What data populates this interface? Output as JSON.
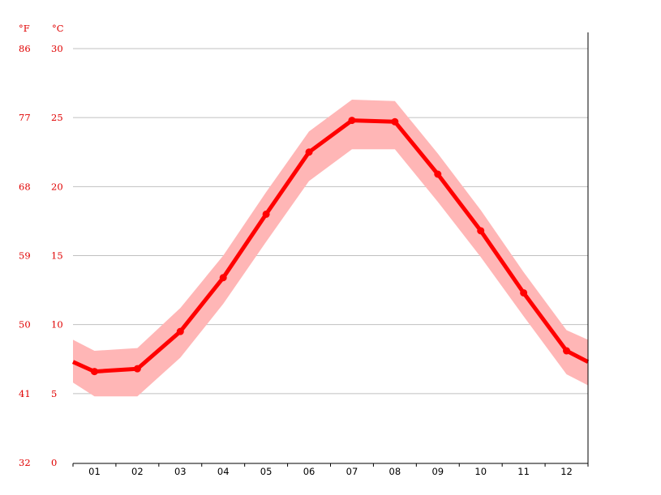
{
  "chart_data": {
    "type": "line",
    "units": {
      "fahrenheit": "°F",
      "celsius": "°C"
    },
    "categories": [
      "01",
      "02",
      "03",
      "04",
      "05",
      "06",
      "07",
      "08",
      "09",
      "10",
      "11",
      "12"
    ],
    "x": [
      1,
      2,
      3,
      4,
      5,
      6,
      7,
      8,
      9,
      10,
      11,
      12
    ],
    "series": [
      {
        "values": [
          6.6,
          6.8,
          9.5,
          13.4,
          18.0,
          22.5,
          24.8,
          24.7,
          20.9,
          16.8,
          12.3,
          8.1
        ],
        "band_high": [
          8.1,
          8.3,
          11.2,
          15.0,
          19.6,
          24.0,
          26.3,
          26.2,
          22.4,
          18.3,
          13.8,
          9.6
        ],
        "band_low": [
          4.8,
          4.8,
          7.6,
          11.5,
          16.0,
          20.4,
          22.7,
          22.7,
          18.9,
          14.9,
          10.6,
          6.4
        ],
        "line_color": "#ff0000",
        "band_color": "#ffb6b6"
      }
    ],
    "edge_values": {
      "start": 7.3,
      "end": 7.3,
      "band_high_start": 8.9,
      "band_low_start": 5.8,
      "band_high_end": 8.9,
      "band_low_end": 5.6
    },
    "y_ticks_c": [
      "0",
      "5",
      "10",
      "15",
      "20",
      "25",
      "30"
    ],
    "y_ticks_f": [
      "32",
      "41",
      "50",
      "59",
      "68",
      "77",
      "86"
    ],
    "ylim": [
      0,
      30
    ],
    "xlim": [
      0.5,
      12.5
    ],
    "grid": true,
    "grid_color": "#c0c0c0",
    "title": "",
    "xlabel": "",
    "ylabel": ""
  }
}
